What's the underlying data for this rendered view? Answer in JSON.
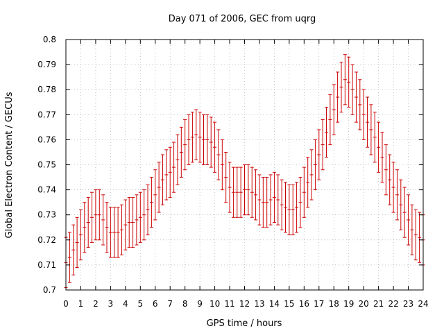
{
  "chart_data": {
    "type": "line",
    "title": "Day 071 of 2006, GEC from uqrg",
    "xlabel": "GPS time / hours",
    "ylabel": "Global Electron Content / GECUs",
    "xlim": [
      0,
      24
    ],
    "ylim": [
      0.7,
      0.8
    ],
    "xticks": [
      0,
      1,
      2,
      3,
      4,
      5,
      6,
      7,
      8,
      9,
      10,
      11,
      12,
      13,
      14,
      15,
      16,
      17,
      18,
      19,
      20,
      21,
      22,
      23,
      24
    ],
    "xtick_labels": [
      "0",
      "1",
      "2",
      "3",
      "4",
      "5",
      "6",
      "7",
      "8",
      "9",
      "10",
      "11",
      "12",
      "13",
      "14",
      "15",
      "16",
      "17",
      "18",
      "19",
      "20",
      "21",
      "22",
      "23",
      "24"
    ],
    "yticks": [
      0.7,
      0.71,
      0.72,
      0.73,
      0.74,
      0.75,
      0.76,
      0.77,
      0.78,
      0.79,
      0.8
    ],
    "ytick_labels": [
      "0.7",
      "0.71",
      "0.72",
      "0.73",
      "0.74",
      "0.75",
      "0.76",
      "0.77",
      "0.78",
      "0.79",
      "0.8"
    ],
    "grid": true,
    "series": [
      {
        "name": "GEC",
        "color": "#cc0000",
        "style": "errorbars",
        "x": [
          0.0,
          0.25,
          0.5,
          0.75,
          1.0,
          1.25,
          1.5,
          1.75,
          2.0,
          2.25,
          2.5,
          2.75,
          3.0,
          3.25,
          3.5,
          3.75,
          4.0,
          4.25,
          4.5,
          4.75,
          5.0,
          5.25,
          5.5,
          5.75,
          6.0,
          6.25,
          6.5,
          6.75,
          7.0,
          7.25,
          7.5,
          7.75,
          8.0,
          8.25,
          8.5,
          8.75,
          9.0,
          9.25,
          9.5,
          9.75,
          10.0,
          10.25,
          10.5,
          10.75,
          11.0,
          11.25,
          11.5,
          11.75,
          12.0,
          12.25,
          12.5,
          12.75,
          13.0,
          13.25,
          13.5,
          13.75,
          14.0,
          14.25,
          14.5,
          14.75,
          15.0,
          15.25,
          15.5,
          15.75,
          16.0,
          16.25,
          16.5,
          16.75,
          17.0,
          17.25,
          17.5,
          17.75,
          18.0,
          18.25,
          18.5,
          18.75,
          19.0,
          19.25,
          19.5,
          19.75,
          20.0,
          20.25,
          20.5,
          20.75,
          21.0,
          21.25,
          21.5,
          21.75,
          22.0,
          22.25,
          22.5,
          22.75,
          23.0,
          23.25,
          23.5,
          23.75,
          24.0
        ],
        "y": [
          0.711,
          0.713,
          0.716,
          0.719,
          0.722,
          0.725,
          0.727,
          0.729,
          0.73,
          0.73,
          0.728,
          0.725,
          0.723,
          0.723,
          0.723,
          0.724,
          0.726,
          0.727,
          0.727,
          0.728,
          0.729,
          0.73,
          0.732,
          0.735,
          0.738,
          0.741,
          0.744,
          0.746,
          0.747,
          0.749,
          0.752,
          0.755,
          0.758,
          0.76,
          0.761,
          0.762,
          0.761,
          0.76,
          0.76,
          0.759,
          0.757,
          0.754,
          0.75,
          0.745,
          0.741,
          0.739,
          0.739,
          0.739,
          0.74,
          0.74,
          0.739,
          0.738,
          0.736,
          0.735,
          0.735,
          0.736,
          0.737,
          0.736,
          0.734,
          0.733,
          0.732,
          0.732,
          0.733,
          0.735,
          0.739,
          0.743,
          0.746,
          0.75,
          0.754,
          0.758,
          0.763,
          0.768,
          0.772,
          0.777,
          0.781,
          0.784,
          0.783,
          0.78,
          0.777,
          0.774,
          0.77,
          0.767,
          0.764,
          0.761,
          0.757,
          0.753,
          0.748,
          0.744,
          0.741,
          0.738,
          0.734,
          0.731,
          0.728,
          0.724,
          0.722,
          0.721,
          0.72
        ],
        "error": [
          0.01,
          0.01,
          0.01,
          0.01,
          0.01,
          0.01,
          0.01,
          0.01,
          0.01,
          0.01,
          0.01,
          0.01,
          0.01,
          0.01,
          0.01,
          0.01,
          0.01,
          0.01,
          0.01,
          0.01,
          0.01,
          0.01,
          0.01,
          0.01,
          0.01,
          0.01,
          0.01,
          0.01,
          0.01,
          0.01,
          0.01,
          0.01,
          0.01,
          0.01,
          0.01,
          0.01,
          0.01,
          0.01,
          0.01,
          0.01,
          0.01,
          0.01,
          0.01,
          0.01,
          0.01,
          0.01,
          0.01,
          0.01,
          0.01,
          0.01,
          0.01,
          0.01,
          0.01,
          0.01,
          0.01,
          0.01,
          0.01,
          0.01,
          0.01,
          0.01,
          0.01,
          0.01,
          0.01,
          0.01,
          0.01,
          0.01,
          0.01,
          0.01,
          0.01,
          0.01,
          0.01,
          0.01,
          0.01,
          0.01,
          0.01,
          0.01,
          0.01,
          0.01,
          0.01,
          0.01,
          0.01,
          0.01,
          0.01,
          0.01,
          0.01,
          0.01,
          0.01,
          0.01,
          0.01,
          0.01,
          0.01,
          0.01,
          0.01,
          0.01,
          0.01,
          0.01,
          0.01
        ]
      }
    ]
  }
}
